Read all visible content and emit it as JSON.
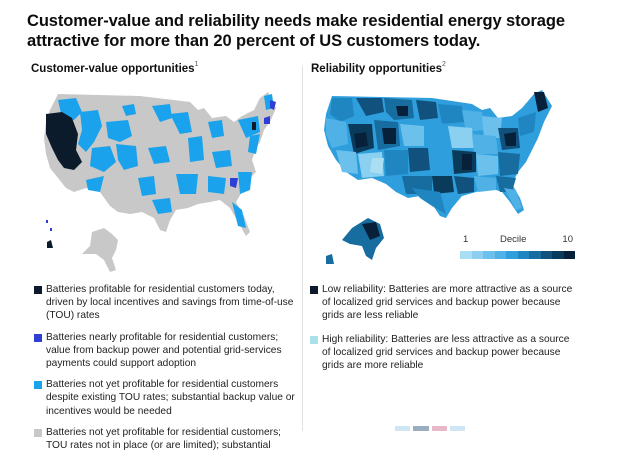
{
  "title": "Customer-value and reliability needs make residential energy storage attractive for more than 20 percent of US customers today.",
  "left_panel": {
    "heading": "Customer-value opportunities",
    "footnote": "1",
    "map_label": "US map of customer-value opportunities for residential batteries",
    "legend": [
      {
        "color": "#0b1b2b",
        "text": "Batteries profitable for residential customers today, driven by local incentives and savings from time-of-use (TOU) rates"
      },
      {
        "color": "#2f3fd6",
        "text": "Batteries nearly profitable for residential customers; value from backup power and potential grid-services payments could support adoption"
      },
      {
        "color": "#1aa3ec",
        "text": "Batteries not yet profitable for residential customers despite existing TOU rates; substantial backup value or incentives would be needed"
      },
      {
        "color": "#c8c8c8",
        "text": "Batteries not yet profitable for residential customers; TOU rates not in place (or are limited); substantial"
      }
    ],
    "colors": {
      "profitable": "#0b1b2b",
      "nearly_profitable": "#2f3fd6",
      "not_yet_tou": "#1aa3ec",
      "not_yet_no_tou": "#c8c8c8"
    }
  },
  "right_panel": {
    "heading": "Reliability opportunities",
    "footnote": "2",
    "map_label": "US map of reliability opportunities by decile",
    "scale": {
      "label": "Decile",
      "min_label": "1",
      "max_label": "10",
      "colors": [
        "#a9def3",
        "#8bd0f0",
        "#6cc1ec",
        "#4fb1e6",
        "#2e9fdc",
        "#1f86c2",
        "#176ca0",
        "#10527d",
        "#0b3b5b",
        "#07213a"
      ]
    },
    "legend": [
      {
        "color": "#0b1b2b",
        "text": "Low reliability: Batteries are more attractive as a source of localized grid services and backup power because grids are less reliable"
      },
      {
        "color": "#a9e0ea",
        "text": "High reliability: Batteries are less attractive as a source of localized grid services and backup power because grids are more reliable"
      }
    ]
  }
}
